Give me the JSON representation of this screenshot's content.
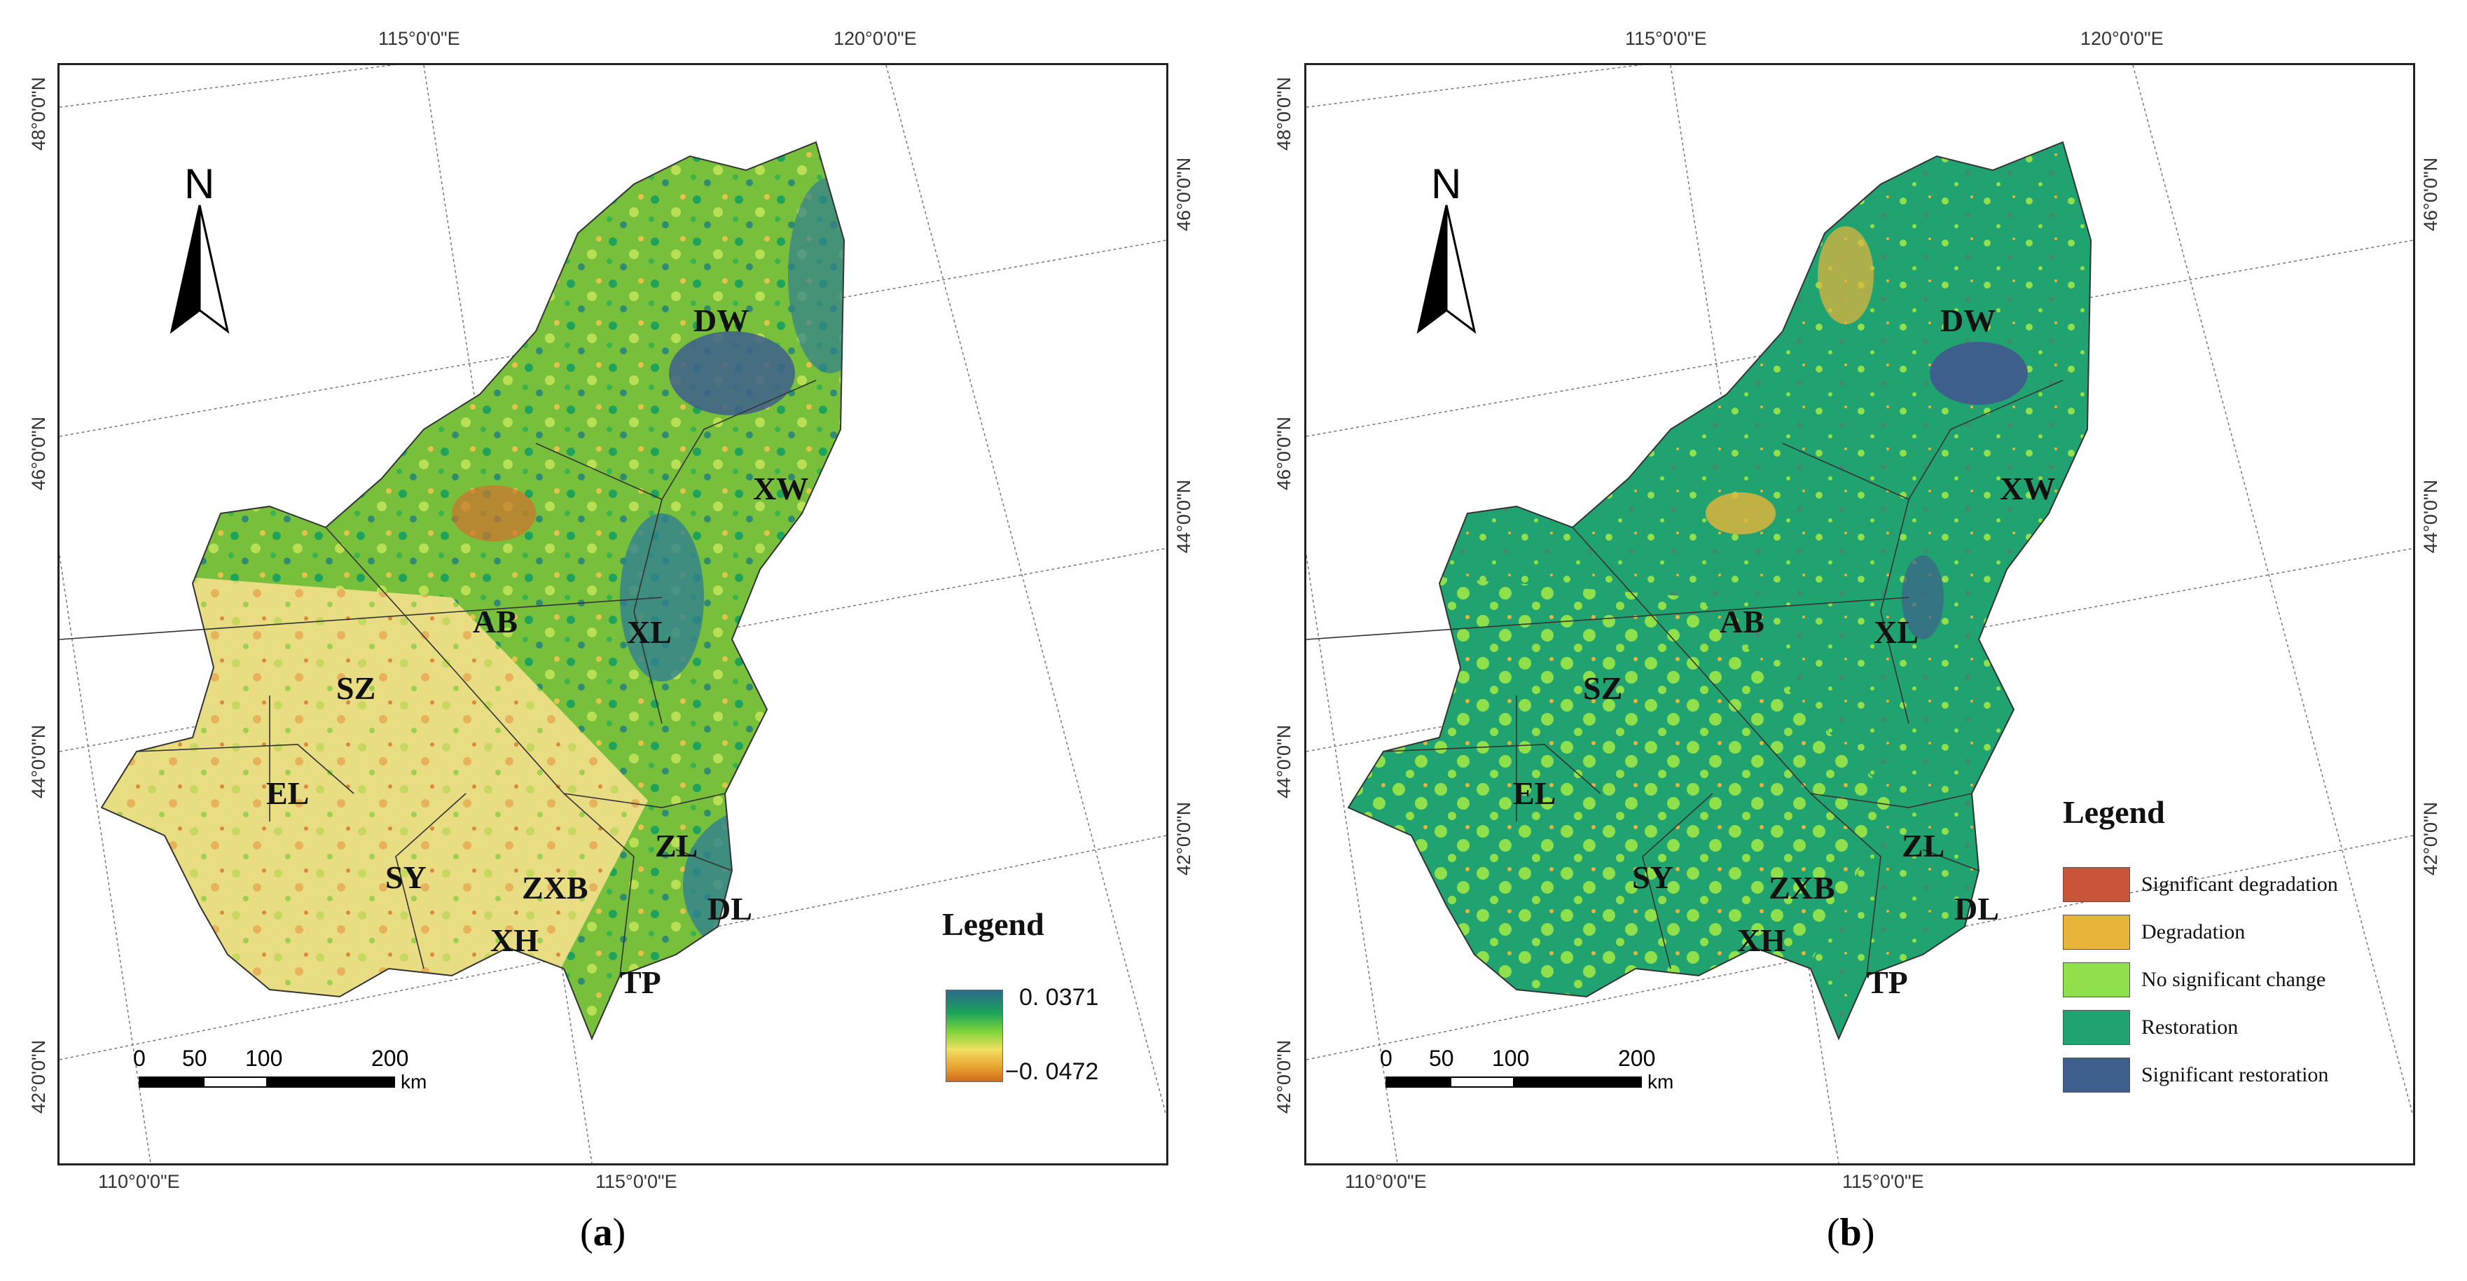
{
  "panels": [
    {
      "caption_letter": "a",
      "top_labels": [
        "115°0'0\"E",
        "120°0'0\"E"
      ],
      "bottom_labels": [
        "110°0'0\"E",
        "115°0'0\"E"
      ],
      "left_labels": [
        "48°0'0\"N",
        "46°0'0\"N",
        "44°0'0\"N",
        "42°0'0\"N"
      ],
      "right_labels": [
        "46°0'0\"N",
        "44°0'0\"N",
        "42°0'0\"N"
      ],
      "north": "N",
      "scale": {
        "ticks": [
          "0",
          "50",
          "100",
          "200"
        ],
        "unit": "km"
      },
      "legend": {
        "title": "Legend",
        "max": "0. 0371",
        "min": "−0. 0472"
      }
    },
    {
      "caption_letter": "b",
      "top_labels": [
        "115°0'0\"E",
        "120°0'0\"E"
      ],
      "bottom_labels": [
        "110°0'0\"E",
        "115°0'0\"E"
      ],
      "left_labels": [
        "48°0'0\"N",
        "46°0'0\"N",
        "44°0'0\"N",
        "42°0'0\"N"
      ],
      "right_labels": [
        "46°0'0\"N",
        "44°0'0\"N",
        "42°0'0\"N"
      ],
      "north": "N",
      "scale": {
        "ticks": [
          "0",
          "50",
          "100",
          "200"
        ],
        "unit": "km"
      },
      "legend": {
        "title": "Legend",
        "items": [
          {
            "label": "Significant degradation",
            "color": "#c8553a"
          },
          {
            "label": "Degradation",
            "color": "#e8b43a"
          },
          {
            "label": "No significant change",
            "color": "#8fe04a"
          },
          {
            "label": "Restoration",
            "color": "#21a371"
          },
          {
            "label": "Significant restoration",
            "color": "#3e5f8c"
          }
        ]
      }
    }
  ],
  "regions": [
    "DW",
    "XW",
    "AB",
    "XL",
    "SZ",
    "EL",
    "SY",
    "ZXB",
    "ZL",
    "XH",
    "DL",
    "TP"
  ],
  "colors": {
    "map_a_base": "#7cc63a",
    "map_a_dry": "#e9d77a",
    "map_b_base": "#21a371",
    "map_b_light": "#8fe04a"
  }
}
